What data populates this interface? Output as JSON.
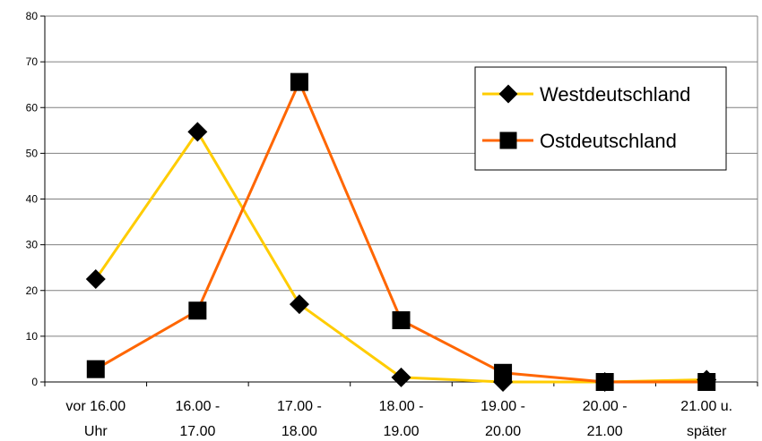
{
  "chart_data": {
    "type": "line",
    "categories": [
      [
        "vor 16.00",
        "Uhr"
      ],
      [
        "16.00 -",
        "17.00"
      ],
      [
        "17.00 -",
        "18.00"
      ],
      [
        "18.00 -",
        "19.00"
      ],
      [
        "19.00 -",
        "20.00"
      ],
      [
        "20.00 -",
        "21.00"
      ],
      [
        "21.00 u.",
        "später"
      ]
    ],
    "series": [
      {
        "name": "Westdeutschland",
        "color": "#FFCC00",
        "marker": "diamond",
        "values": [
          22.5,
          54.7,
          17,
          1,
          0,
          0,
          0.5
        ]
      },
      {
        "name": "Ostdeutschland",
        "color": "#FF6600",
        "marker": "square",
        "values": [
          2.8,
          15.6,
          65.6,
          13.5,
          2,
          0,
          0
        ]
      }
    ],
    "ylim": [
      0,
      80
    ],
    "yticks": [
      0,
      10,
      20,
      30,
      40,
      50,
      60,
      70,
      80
    ],
    "grid": true,
    "legend": "top-right"
  }
}
